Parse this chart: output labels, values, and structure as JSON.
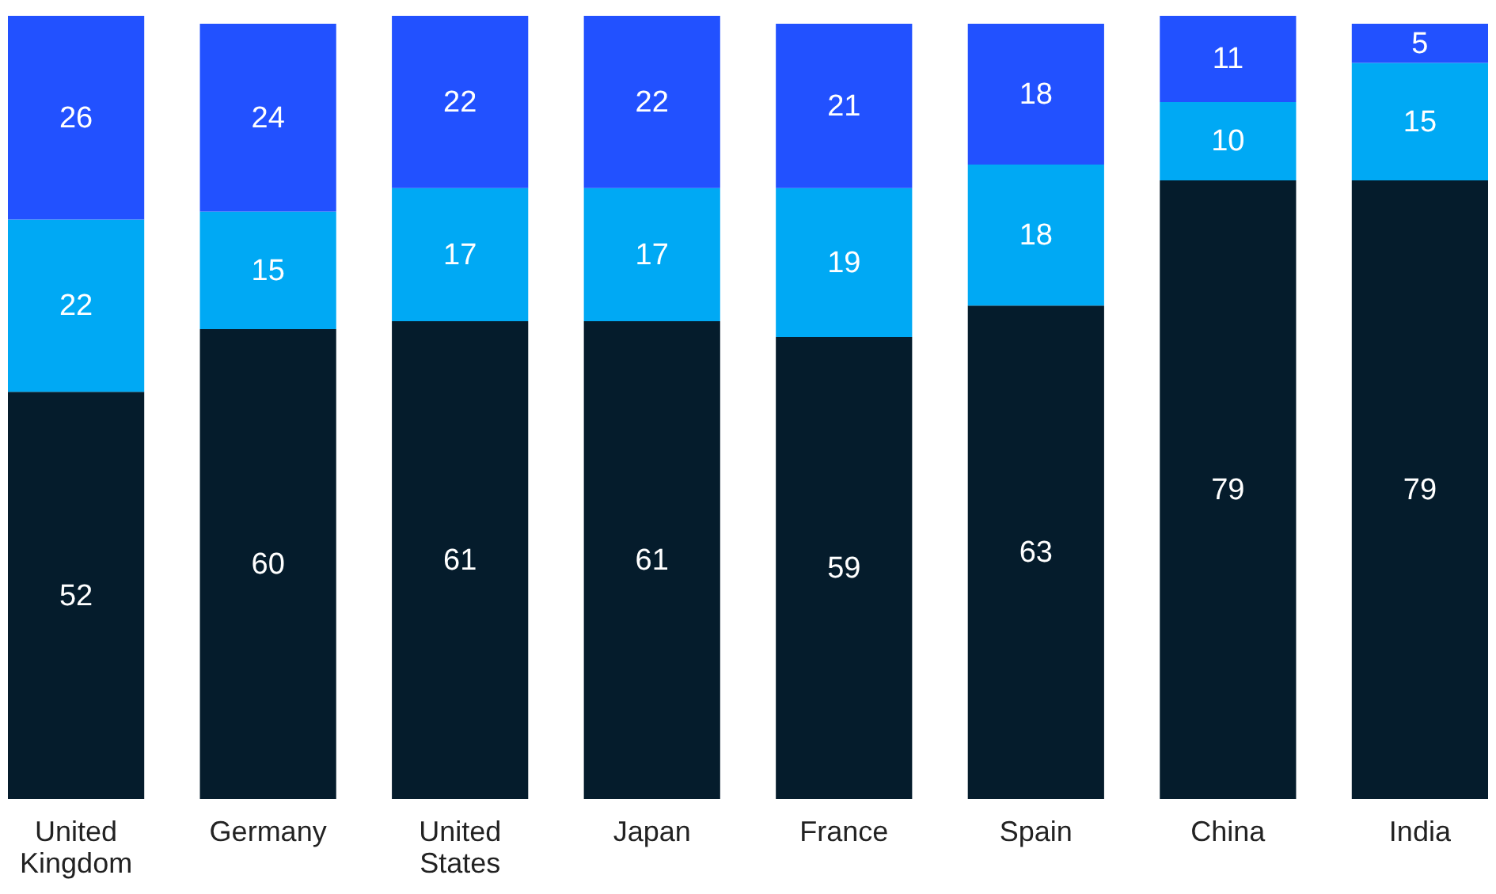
{
  "chart_data": {
    "type": "bar",
    "stacked": true,
    "data_labels": true,
    "grid": false,
    "tick_labels": "x",
    "categories": [
      "United Kingdom",
      "Germany",
      "United States",
      "Japan",
      "France",
      "Spain",
      "China",
      "India"
    ],
    "series": [
      {
        "color": "#051c2c",
        "values": [
          52,
          60,
          61,
          61,
          59,
          63,
          79,
          79
        ]
      },
      {
        "color": "#00a9f4",
        "values": [
          22,
          15,
          17,
          17,
          19,
          18,
          10,
          15
        ]
      },
      {
        "color": "#2251ff",
        "values": [
          26,
          24,
          22,
          22,
          21,
          18,
          11,
          5
        ]
      }
    ]
  }
}
